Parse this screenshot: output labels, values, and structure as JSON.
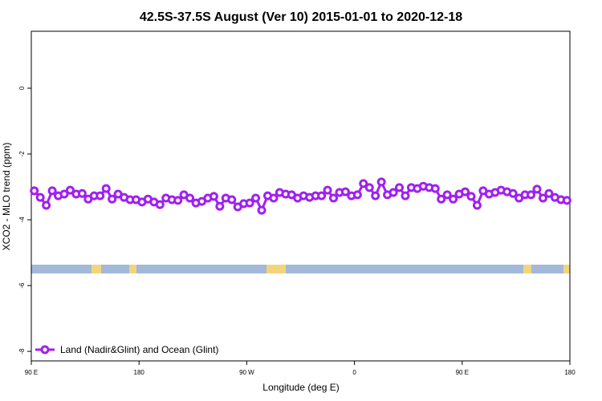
{
  "chart_data": {
    "type": "line",
    "title": "42.5S-37.5S August (Ver 10)   2015-01-01 to 2020-12-18",
    "x_label": "Longitude (deg E)",
    "y_label": "XCO2 - MLO trend (ppm)",
    "xlim": [
      90,
      540
    ],
    "ylim": [
      -8.29,
      1.73
    ],
    "xticks": [
      {
        "value": 90,
        "label": "90 E"
      },
      180,
      {
        "value": 270,
        "label": "90 W"
      },
      {
        "value": 360,
        "label": "0"
      },
      {
        "value": 450,
        "label": "90 E"
      },
      {
        "value": 540,
        "label": "180"
      }
    ],
    "yticks": [
      0,
      -2,
      -4,
      -6,
      -8
    ],
    "legend": "bottom-left",
    "x": [
      92.5,
      97.5,
      102.5,
      107.5,
      112.5,
      117.5,
      122.5,
      127.5,
      132.5,
      137.5,
      142.5,
      147.5,
      152.5,
      157.5,
      162.5,
      167.5,
      172.5,
      177.5,
      182.5,
      187.5,
      192.5,
      197.5,
      202.5,
      207.5,
      212.5,
      217.5,
      222.5,
      227.5,
      232.5,
      237.5,
      242.5,
      247.5,
      252.5,
      257.5,
      262.5,
      267.5,
      272.5,
      277.5,
      282.5,
      287.5,
      292.5,
      297.5,
      302.5,
      307.5,
      312.5,
      317.5,
      322.5,
      327.5,
      332.5,
      337.5,
      342.5,
      347.5,
      352.5,
      357.5,
      362.5,
      367.5,
      372.5,
      377.5,
      382.5,
      387.5,
      392.5,
      397.5,
      402.5,
      407.5,
      412.5,
      417.5,
      422.5,
      427.5,
      432.5,
      437.5,
      442.5,
      447.5,
      452.5,
      457.5,
      462.5,
      467.5,
      472.5,
      477.5,
      482.5,
      487.5,
      492.5,
      497.5,
      502.5,
      507.5,
      512.5,
      517.5,
      522.5,
      527.5,
      532.5,
      537.5
    ],
    "series": [
      {
        "name": "Land (Nadir&Glint) and Ocean (Glint)",
        "color": "#a020f0",
        "values": [
          -3.12,
          -3.32,
          -3.56,
          -3.12,
          -3.27,
          -3.22,
          -3.1,
          -3.22,
          -3.2,
          -3.37,
          -3.27,
          -3.27,
          -3.05,
          -3.37,
          -3.22,
          -3.32,
          -3.39,
          -3.39,
          -3.46,
          -3.37,
          -3.46,
          -3.54,
          -3.34,
          -3.39,
          -3.41,
          -3.24,
          -3.34,
          -3.49,
          -3.44,
          -3.34,
          -3.29,
          -3.59,
          -3.34,
          -3.39,
          -3.61,
          -3.51,
          -3.49,
          -3.34,
          -3.71,
          -3.27,
          -3.34,
          -3.17,
          -3.22,
          -3.24,
          -3.34,
          -3.27,
          -3.32,
          -3.27,
          -3.27,
          -3.1,
          -3.34,
          -3.17,
          -3.15,
          -3.27,
          -3.24,
          -2.9,
          -3.02,
          -3.27,
          -2.85,
          -3.24,
          -3.17,
          -3.02,
          -3.27,
          -3.02,
          -3.05,
          -2.98,
          -3.02,
          -3.05,
          -3.37,
          -3.24,
          -3.37,
          -3.22,
          -3.15,
          -3.29,
          -3.56,
          -3.12,
          -3.22,
          -3.17,
          -3.1,
          -3.15,
          -3.2,
          -3.34,
          -3.24,
          -3.24,
          -3.07,
          -3.34,
          -3.2,
          -3.32,
          -3.39,
          -3.41
        ]
      }
    ]
  }
}
